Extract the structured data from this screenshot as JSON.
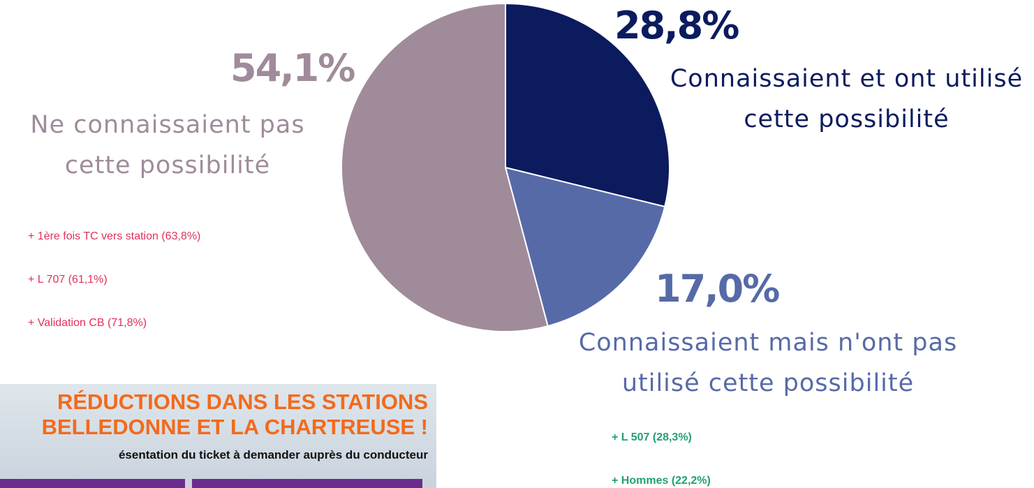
{
  "chart_data": {
    "type": "pie",
    "categories": [
      "Connaissaient et ont utilisé cette possibilité",
      "Connaissaient mais n'ont pas utilisé cette possibilité",
      "Ne connaissaient pas cette possibilité"
    ],
    "values": [
      28.8,
      17.0,
      54.1
    ],
    "value_labels": [
      "28,8%",
      "17,0%",
      "54,1%"
    ],
    "colors": [
      "#0b1b5e",
      "#576aa8",
      "#a08b9b"
    ],
    "highlights": {
      "1": {
        "color": "#22a06f",
        "items": [
          "+ L 507 (28,3%)",
          "+ Hommes (22,2%)"
        ]
      },
      "2": {
        "color": "#e0315a",
        "items": [
          "+ 1ère fois TC vers station (63,8%)",
          "+ L 707 (61,1%)",
          "+ Validation CB (71,8%)"
        ]
      }
    }
  },
  "poster": {
    "lines": [
      "RÉDUCTIONS DANS LES STATIONS",
      "BELLEDONNE ET LA CHARTREUSE !",
      "ésentation du ticket à demander auprès du conducteur"
    ]
  }
}
